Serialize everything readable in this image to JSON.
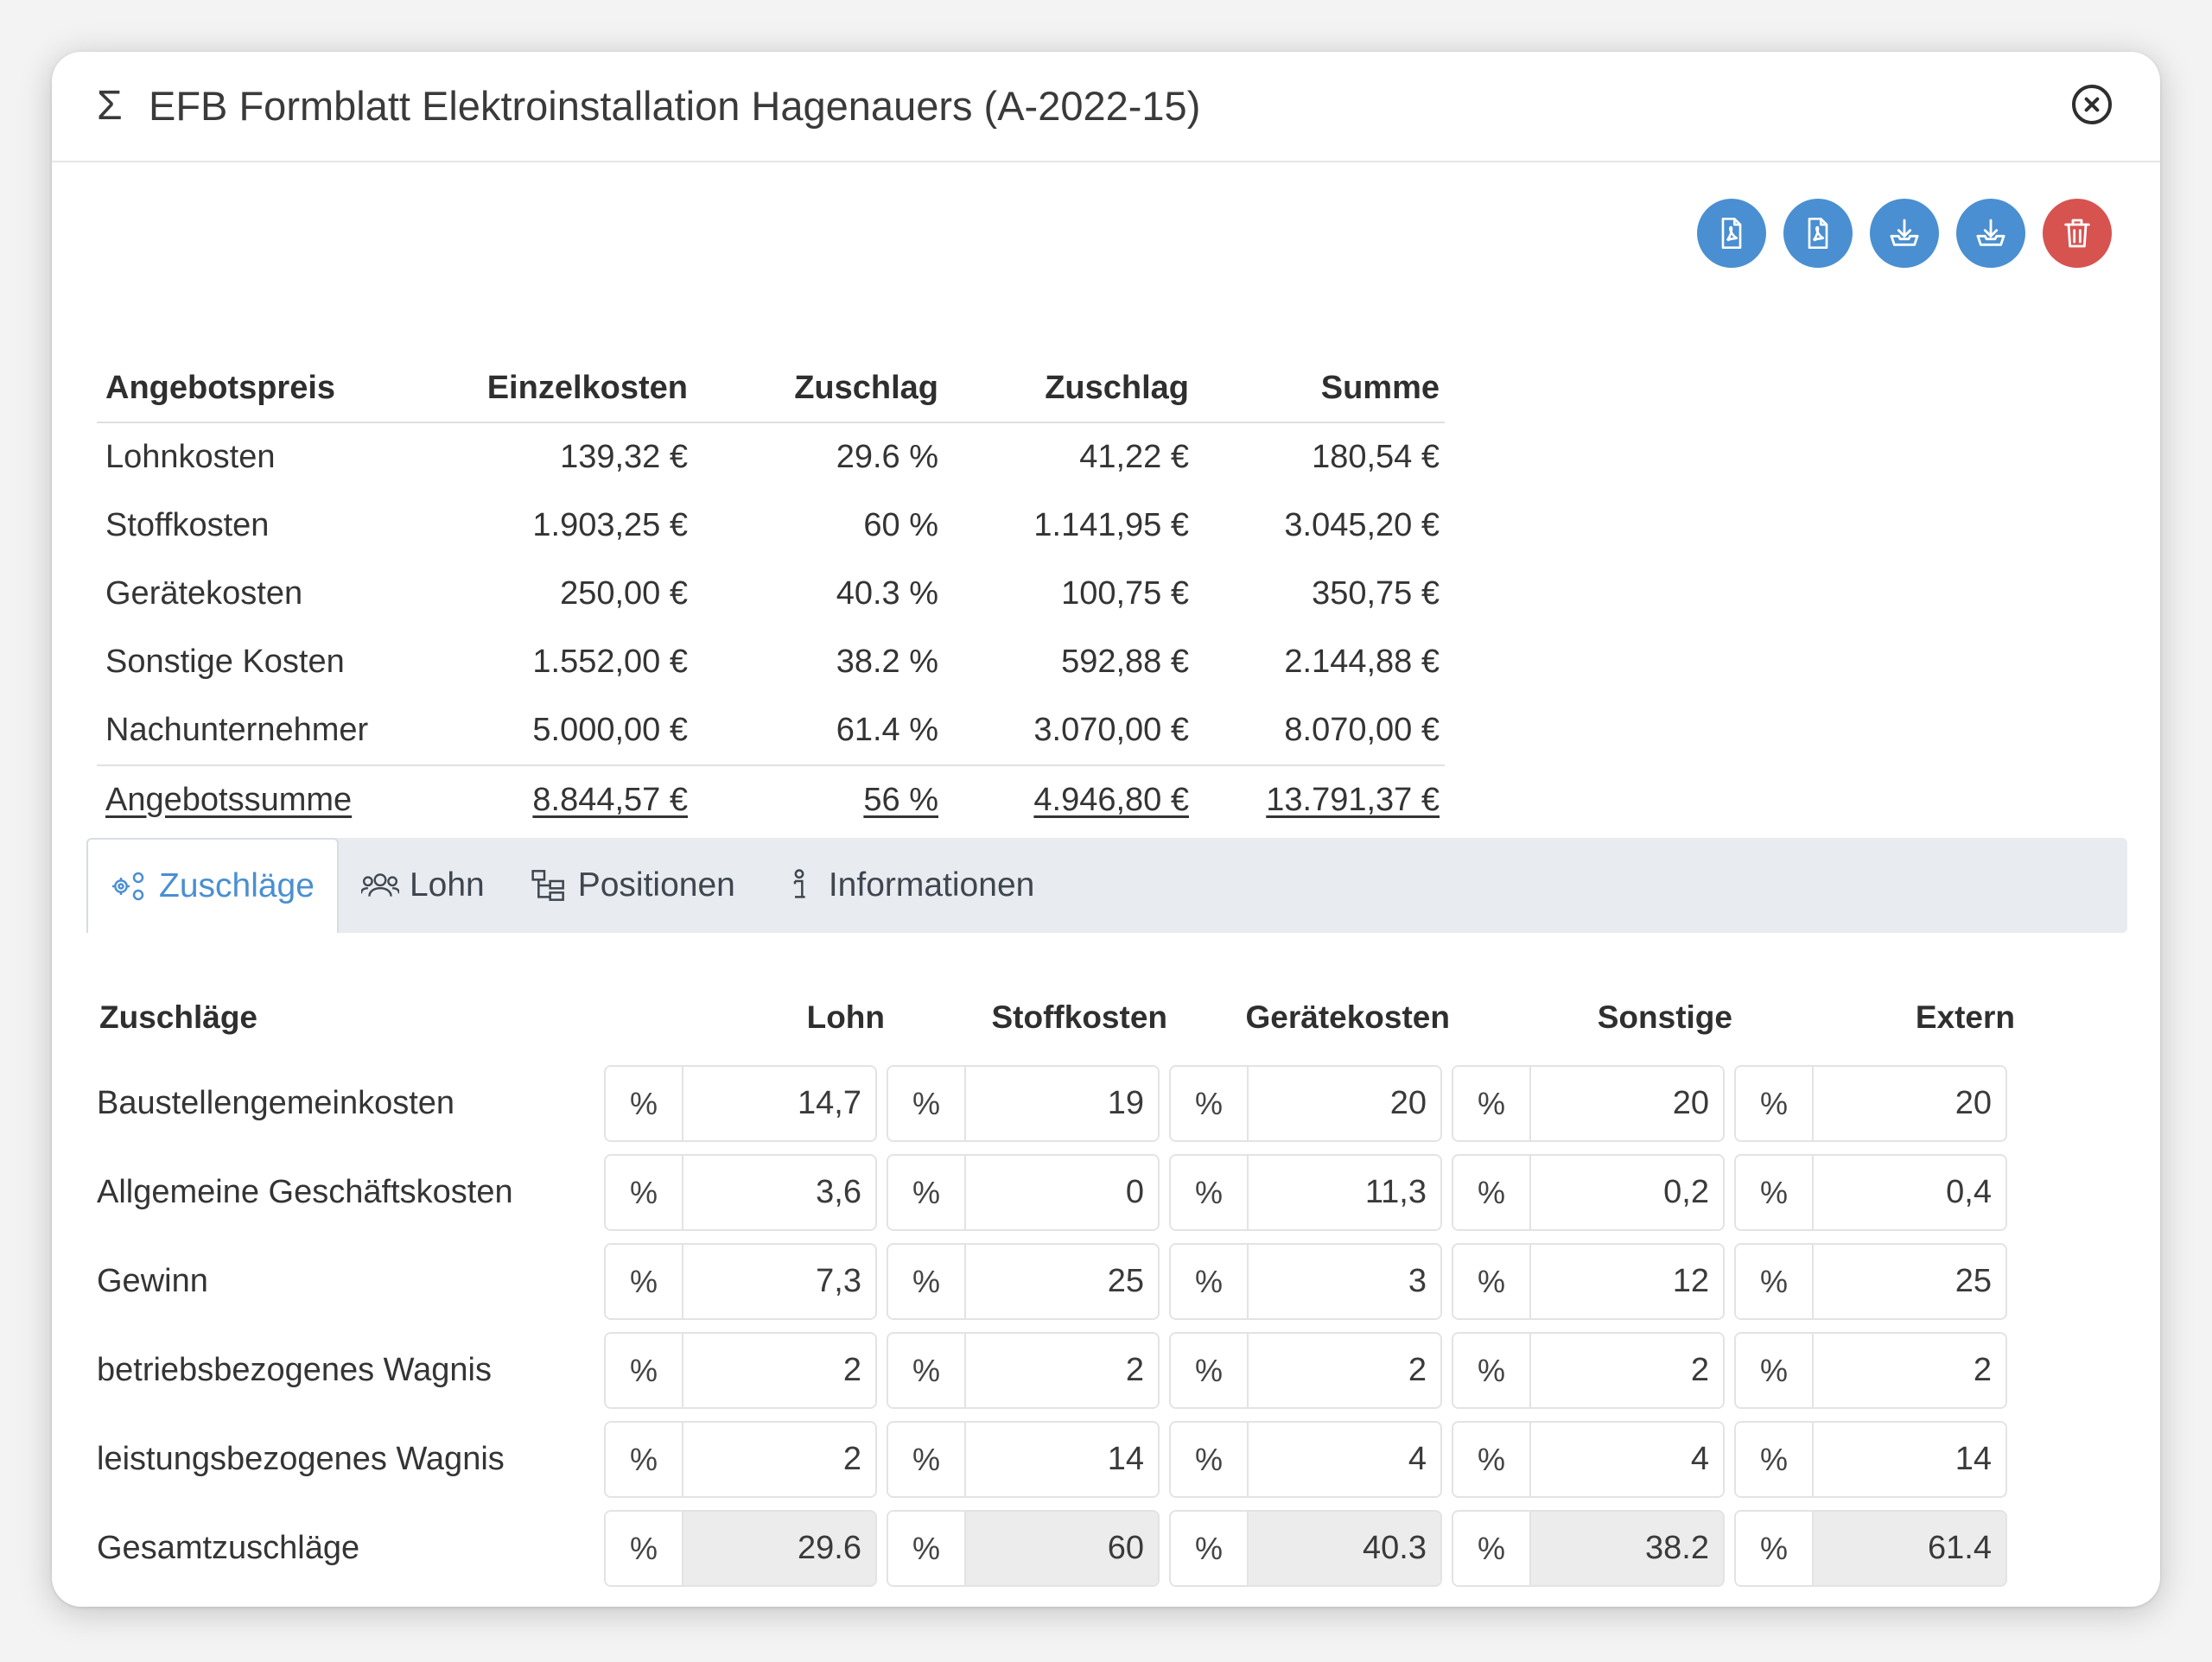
{
  "header": {
    "title": "EFB Formblatt Elektroinstallation Hagenauers (A-2022-15)",
    "sigma_symbol": "Σ",
    "close_icon": "close-circle-icon"
  },
  "toolbar": {
    "buttons": [
      {
        "icon": "pdf-icon",
        "color": "#4a8fd1"
      },
      {
        "icon": "pdf-icon",
        "color": "#4a8fd1"
      },
      {
        "icon": "download-icon",
        "color": "#4a8fd1"
      },
      {
        "icon": "download-icon",
        "color": "#4a8fd1"
      },
      {
        "icon": "trash-icon",
        "color": "#d65350"
      }
    ]
  },
  "summary": {
    "headers": [
      "Angebotspreis",
      "Einzelkosten",
      "Zuschlag",
      "Zuschlag",
      "Summe"
    ],
    "rows": [
      [
        "Lohnkosten",
        "139,32 €",
        "29.6 %",
        "41,22 €",
        "180,54 €"
      ],
      [
        "Stoffkosten",
        "1.903,25 €",
        "60 %",
        "1.141,95 €",
        "3.045,20 €"
      ],
      [
        "Gerätekosten",
        "250,00 €",
        "40.3 %",
        "100,75 €",
        "350,75 €"
      ],
      [
        "Sonstige Kosten",
        "1.552,00 €",
        "38.2 %",
        "592,88 €",
        "2.144,88 €"
      ],
      [
        "Nachunternehmer",
        "5.000,00 €",
        "61.4 %",
        "3.070,00 €",
        "8.070,00 €"
      ]
    ],
    "total": [
      "Angebotssumme",
      "8.844,57 €",
      "56 %",
      "4.946,80 €",
      "13.791,37 €"
    ]
  },
  "tabs": [
    {
      "label": "Zuschläge",
      "icon": "gears-icon",
      "active": true
    },
    {
      "label": "Lohn",
      "icon": "users-icon",
      "active": false
    },
    {
      "label": "Positionen",
      "icon": "tree-icon",
      "active": false
    },
    {
      "label": "Informationen",
      "icon": "info-icon",
      "active": false
    }
  ],
  "zuschlaege": {
    "title": "Zuschläge",
    "columns": [
      "Lohn",
      "Stoffkosten",
      "Gerätekosten",
      "Sonstige",
      "Extern"
    ],
    "unit": "%",
    "rows": [
      {
        "label": "Baustellengemeinkosten",
        "values": [
          "14,7",
          "19",
          "20",
          "20",
          "20"
        ]
      },
      {
        "label": "Allgemeine Geschäftskosten",
        "values": [
          "3,6",
          "0",
          "11,3",
          "0,2",
          "0,4"
        ]
      },
      {
        "label": "Gewinn",
        "values": [
          "7,3",
          "25",
          "3",
          "12",
          "25"
        ]
      },
      {
        "label": "betriebsbezogenes Wagnis",
        "values": [
          "2",
          "2",
          "2",
          "2",
          "2"
        ]
      },
      {
        "label": "leistungsbezogenes Wagnis",
        "values": [
          "2",
          "14",
          "4",
          "4",
          "14"
        ]
      }
    ],
    "total": {
      "label": "Gesamtzuschläge",
      "values": [
        "29.6",
        "60",
        "40.3",
        "38.2",
        "61.4"
      ]
    }
  },
  "colors": {
    "accent": "#4a8fd1",
    "danger": "#d65350",
    "tabbar": "#e8ebef"
  }
}
